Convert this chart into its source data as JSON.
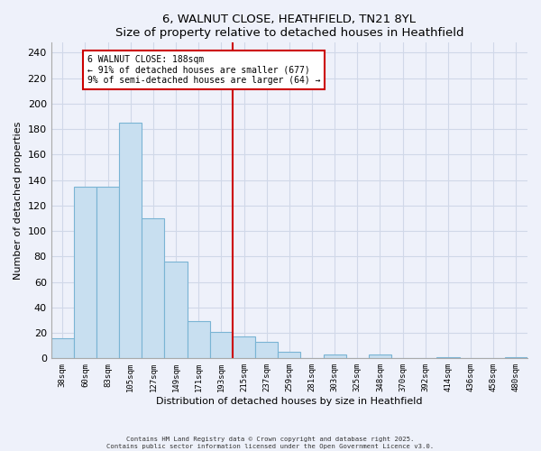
{
  "title": "6, WALNUT CLOSE, HEATHFIELD, TN21 8YL",
  "subtitle": "Size of property relative to detached houses in Heathfield",
  "xlabel": "Distribution of detached houses by size in Heathfield",
  "ylabel": "Number of detached properties",
  "bar_labels": [
    "38sqm",
    "60sqm",
    "83sqm",
    "105sqm",
    "127sqm",
    "149sqm",
    "171sqm",
    "193sqm",
    "215sqm",
    "237sqm",
    "259sqm",
    "281sqm",
    "303sqm",
    "325sqm",
    "348sqm",
    "370sqm",
    "392sqm",
    "414sqm",
    "436sqm",
    "458sqm",
    "480sqm"
  ],
  "bar_values": [
    16,
    135,
    135,
    185,
    110,
    76,
    29,
    21,
    17,
    13,
    5,
    0,
    3,
    0,
    3,
    0,
    0,
    1,
    0,
    0,
    1
  ],
  "bar_color": "#c8dff0",
  "bar_edge_color": "#7ab4d4",
  "vline_x": 7.5,
  "vline_color": "#cc0000",
  "annotation_title": "6 WALNUT CLOSE: 188sqm",
  "annotation_line1": "← 91% of detached houses are smaller (677)",
  "annotation_line2": "9% of semi-detached houses are larger (64) →",
  "annotation_box_color": "#ffffff",
  "annotation_box_edge": "#cc0000",
  "ylim": [
    0,
    248
  ],
  "yticks": [
    0,
    20,
    40,
    60,
    80,
    100,
    120,
    140,
    160,
    180,
    200,
    220,
    240
  ],
  "footer1": "Contains HM Land Registry data © Crown copyright and database right 2025.",
  "footer2": "Contains public sector information licensed under the Open Government Licence v3.0.",
  "background_color": "#eef1fa",
  "grid_color": "#d0d8e8"
}
